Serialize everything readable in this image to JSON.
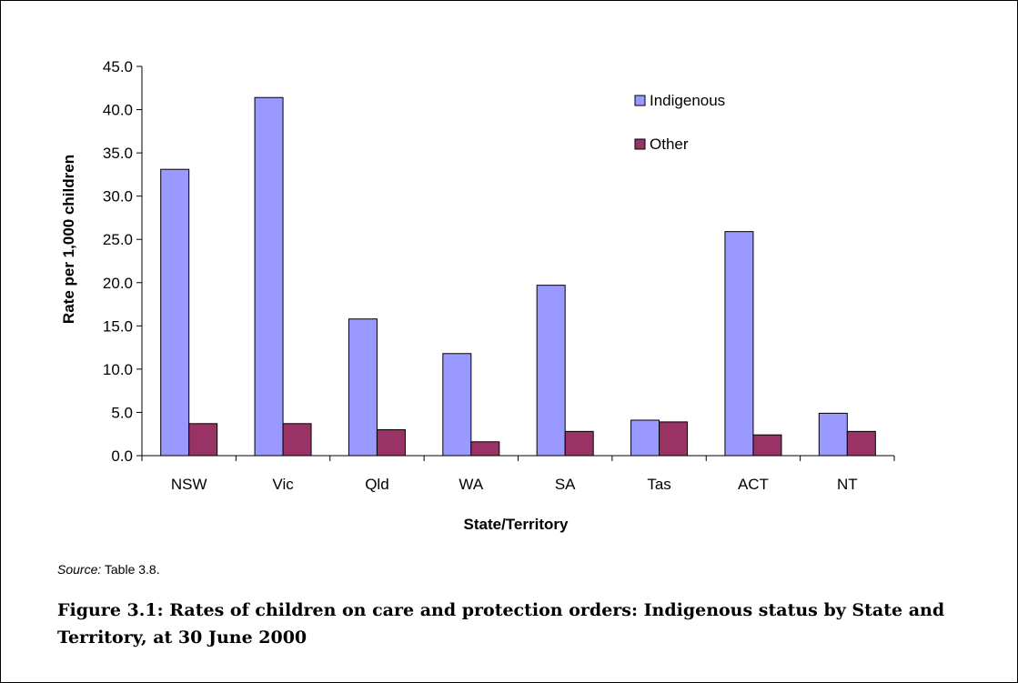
{
  "chart_data": {
    "type": "bar",
    "categories": [
      "NSW",
      "Vic",
      "Qld",
      "WA",
      "SA",
      "Tas",
      "ACT",
      "NT"
    ],
    "series": [
      {
        "name": "Indigenous",
        "values": [
          33.1,
          41.4,
          15.8,
          11.8,
          19.7,
          4.1,
          25.9,
          4.9
        ],
        "color": "#9999ff"
      },
      {
        "name": "Other",
        "values": [
          3.7,
          3.7,
          3.0,
          1.6,
          2.8,
          3.9,
          2.4,
          2.8
        ],
        "color": "#993366"
      }
    ],
    "xlabel": "State/Territory",
    "ylabel": "Rate per 1,000 children",
    "ylim": [
      0,
      45
    ],
    "yticks": [
      "0.0",
      "5.0",
      "10.0",
      "15.0",
      "20.0",
      "25.0",
      "30.0",
      "35.0",
      "40.0",
      "45.0"
    ],
    "grid": false,
    "legend_position": "top-right"
  },
  "source": {
    "label": "Source:",
    "text": " Table 3.8."
  },
  "caption": "Figure 3.1: Rates of children on care and protection orders: Indigenous status by State and Territory, at 30 June 2000"
}
